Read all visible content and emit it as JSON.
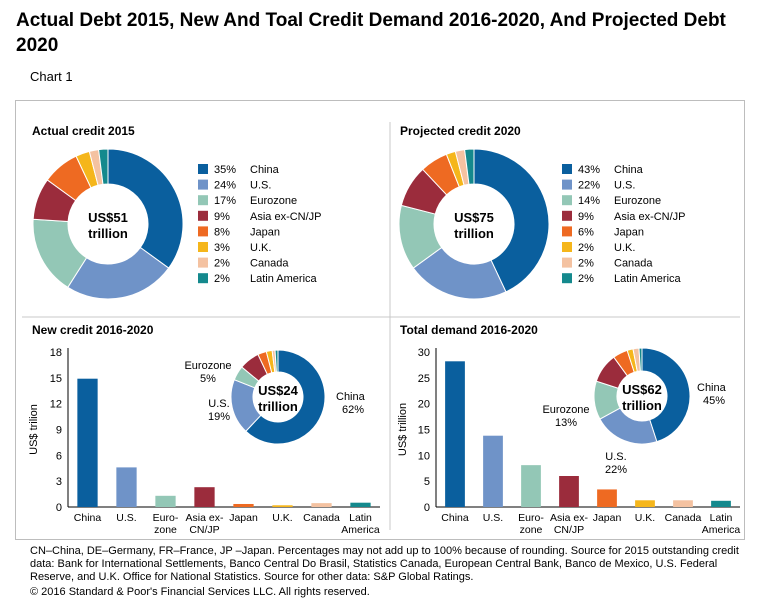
{
  "title": "Actual Debt 2015, New And Toal Credit Demand 2016-2020, And Projected Debt 2020",
  "subtitle": "Chart 1",
  "footer": "CN–China, DE–Germany, FR–France, JP –Japan. Percentages may not add up to 100% because of rounding. Source for 2015 outstanding credit data: Bank for International Settlements, Banco Central Do Brasil, Statistics Canada, European Central Bank, Banco de Mexico, U.S. Federal Reserve, and U.K. Office for National Statistics. Source for other data: S&P Global Ratings.",
  "copyright": "© 2016 Standard & Poor's Financial Services LLC. All rights reserved.",
  "colors": {
    "China": "#0a5f9e",
    "U.S.": "#6f93c8",
    "Eurozone": "#93c7b6",
    "Asia ex-CN/JP": "#9b2c3c",
    "Japan": "#ee6a22",
    "U.K.": "#f5b61b",
    "Canada": "#f4c2a1",
    "Latin America": "#14898d"
  },
  "chart_data": [
    {
      "type": "pie",
      "title": "Actual credit 2015",
      "center_label": [
        "US$51",
        "trillion"
      ],
      "categories": [
        "China",
        "U.S.",
        "Eurozone",
        "Asia ex-CN/JP",
        "Japan",
        "U.K.",
        "Canada",
        "Latin America"
      ],
      "values": [
        35,
        24,
        17,
        9,
        8,
        3,
        2,
        2
      ],
      "labels": [
        "35%",
        "24%",
        "17%",
        "9%",
        "8%",
        "3%",
        "2%",
        "2%"
      ]
    },
    {
      "type": "pie",
      "title": "Projected credit 2020",
      "center_label": [
        "US$75",
        "trillion"
      ],
      "categories": [
        "China",
        "U.S.",
        "Eurozone",
        "Asia ex-CN/JP",
        "Japan",
        "U.K.",
        "Canada",
        "Latin America"
      ],
      "values": [
        43,
        22,
        14,
        9,
        6,
        2,
        2,
        2
      ],
      "labels": [
        "43%",
        "22%",
        "14%",
        "9%",
        "6%",
        "2%",
        "2%",
        "2%"
      ]
    },
    {
      "type": "bar",
      "title": "New credit 2016-2020",
      "ylabel": "US$ trilion",
      "ylim": [
        0,
        18
      ],
      "yticks": [
        0,
        3,
        6,
        9,
        12,
        15,
        18
      ],
      "categories": [
        "China",
        "U.S.",
        "Eurozone",
        "Asia ex-CN/JP",
        "Japan",
        "U.K.",
        "Canada",
        "Latin America"
      ],
      "category_labels": [
        [
          "China"
        ],
        [
          "U.S."
        ],
        [
          "Euro-",
          "zone"
        ],
        [
          "Asia ex-",
          "CN/JP"
        ],
        [
          "Japan"
        ],
        [
          "U.K."
        ],
        [
          "Canada"
        ],
        [
          "Latin",
          "America"
        ]
      ],
      "values": [
        14.9,
        4.6,
        1.3,
        2.3,
        0.35,
        0.2,
        0.45,
        0.5
      ],
      "inset_pie": {
        "type": "pie",
        "center_label": [
          "US$24",
          "trillion"
        ],
        "values": [
          62,
          19,
          5,
          7,
          3,
          2,
          1,
          1
        ],
        "callouts": [
          {
            "label": "China",
            "value": "62%"
          },
          {
            "label": "U.S.",
            "value": "19%"
          },
          {
            "label": "Eurozone",
            "value": "5%"
          }
        ]
      }
    },
    {
      "type": "bar",
      "title": "Total demand 2016-2020",
      "ylabel": "US$ trillion",
      "ylim": [
        0,
        30
      ],
      "yticks": [
        0,
        5,
        10,
        15,
        20,
        25,
        30
      ],
      "categories": [
        "China",
        "U.S.",
        "Eurozone",
        "Asia ex-CN/JP",
        "Japan",
        "U.K.",
        "Canada",
        "Latin America"
      ],
      "category_labels": [
        [
          "China"
        ],
        [
          "U.S."
        ],
        [
          "Euro-",
          "zone"
        ],
        [
          "Asia ex-",
          "CN/JP"
        ],
        [
          "Japan"
        ],
        [
          "U.K."
        ],
        [
          "Canada"
        ],
        [
          "Latin",
          "America"
        ]
      ],
      "values": [
        28.2,
        13.8,
        8.1,
        6.0,
        3.4,
        1.3,
        1.3,
        1.2
      ],
      "inset_pie": {
        "type": "pie",
        "center_label": [
          "US$62",
          "trillion"
        ],
        "values": [
          45,
          22,
          13,
          10,
          5,
          2,
          2,
          1
        ],
        "callouts": [
          {
            "label": "China",
            "value": "45%"
          },
          {
            "label": "U.S.",
            "value": "22%"
          },
          {
            "label": "Eurozone",
            "value": "13%"
          }
        ]
      }
    }
  ]
}
